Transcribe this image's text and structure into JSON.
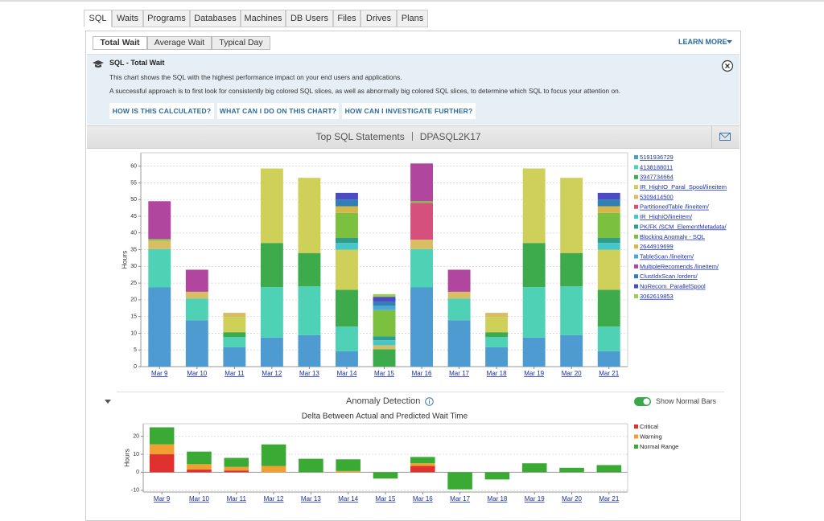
{
  "tabs": [
    "SQL",
    "Waits",
    "Programs",
    "Databases",
    "Machines",
    "DB Users",
    "Files",
    "Drives",
    "Plans"
  ],
  "subtabs": [
    "Total Wait",
    "Average Wait",
    "Typical Day"
  ],
  "learn_more": "LEARN MORE",
  "info": {
    "title": "SQL - Total Wait",
    "lines": [
      "This chart shows the SQL with the highest performance impact on your end users and applications.",
      "A successful approach is to first look for consistently big colored SQL slices, as well as abnormally big colored SQL slices, to determine which SQL to focus your attention on."
    ],
    "buttons": [
      "HOW IS THIS CALCULATED?",
      "WHAT CAN I DO ON THIS CHART?",
      "HOW CAN I INVESTIGATE FURTHER?"
    ]
  },
  "anomaly_section": {
    "title": "Anomaly Detection",
    "toggle_label": "Show Normal Bars"
  },
  "chart_data": [
    {
      "type": "bar",
      "stacked": true,
      "title": "Top SQL Statements",
      "subtitle": "DPASQL2K17",
      "y_label": "Hours",
      "categories": [
        "Mar 9",
        "Mar 10",
        "Mar 11",
        "Mar 12",
        "Mar 13",
        "Mar 14",
        "Mar 15",
        "Mar 16",
        "Mar 17",
        "Mar 18",
        "Mar 19",
        "Mar 20",
        "Mar 21"
      ],
      "ylim": [
        0,
        64
      ],
      "yticks": [
        0,
        5,
        10,
        15,
        20,
        25,
        30,
        35,
        40,
        45,
        50,
        55,
        60
      ],
      "grid": true,
      "legend": "right",
      "series": [
        {
          "name": "5191936729",
          "color": "#4e9bd1",
          "values": [
            23.7,
            13.9,
            5.8,
            8.7,
            9.4,
            4.6,
            0,
            23.7,
            13.9,
            5.8,
            8.7,
            9.4,
            4.6
          ]
        },
        {
          "name": "4138188011",
          "color": "#4fd1b5",
          "values": [
            11.5,
            6.5,
            3.1,
            15.1,
            14.6,
            7.4,
            0,
            11.5,
            6.5,
            3.1,
            15.1,
            14.6,
            7.4
          ]
        },
        {
          "name": "3947734664",
          "color": "#3daa4c",
          "values": [
            0,
            0,
            1.4,
            13.2,
            10,
            11,
            5.2,
            0,
            0,
            1.4,
            13.2,
            10,
            11
          ]
        },
        {
          "name": "IR_HighIO_Paral_Spool/lineitem",
          "color": "#cfd05a",
          "values": [
            0,
            0,
            4.6,
            22.3,
            22.5,
            12,
            0,
            0,
            0,
            4.6,
            22.3,
            22.5,
            12
          ]
        },
        {
          "name": "5309414500",
          "color": "#d8bd64",
          "values": [
            2.5,
            2,
            1.2,
            0,
            0,
            0,
            1.2,
            2.8,
            2,
            1.2,
            0,
            0,
            0
          ]
        },
        {
          "name": "PartitionedTable /lineitem/",
          "color": "#d5507c",
          "values": [
            0,
            0,
            0,
            0,
            0,
            0,
            0,
            11,
            0,
            0,
            0,
            0,
            0
          ]
        },
        {
          "name": "IR_HighIO/lineitem/",
          "color": "#45c7c9",
          "values": [
            0,
            0,
            0,
            0,
            0,
            2,
            1.5,
            0,
            0,
            0,
            0,
            0,
            2
          ]
        },
        {
          "name": "PK/FK /SCM_ElementMetadata/",
          "color": "#2f9c8c",
          "values": [
            0,
            0,
            0,
            0,
            0,
            1.5,
            1.2,
            0,
            0,
            0,
            0,
            0,
            1.5
          ]
        },
        {
          "name": "Blocking Anomaly - SQL",
          "color": "#7cc040",
          "values": [
            0.5,
            0,
            0,
            0,
            0,
            7.5,
            7.8,
            0.5,
            0,
            0,
            0,
            0,
            7.5
          ]
        },
        {
          "name": "2644919699",
          "color": "#d4b74b",
          "values": [
            0,
            0,
            0,
            0,
            0,
            2,
            0,
            0,
            0,
            0,
            0,
            0,
            2
          ]
        },
        {
          "name": "TableScan /lineitem/",
          "color": "#4aa7d6",
          "values": [
            0,
            0,
            0,
            0,
            0,
            0,
            1.3,
            0,
            0,
            0,
            0,
            0,
            0
          ]
        },
        {
          "name": "MultipleRecomends /lineitem/",
          "color": "#b1469e",
          "values": [
            11.3,
            6.6,
            0,
            0,
            0,
            0,
            0,
            11.3,
            6.6,
            0,
            0,
            0,
            0
          ]
        },
        {
          "name": "ClustIdxScan /orders/",
          "color": "#2f7fb5",
          "values": [
            0,
            0,
            0,
            0,
            0,
            2,
            1.2,
            0,
            0,
            0,
            0,
            0,
            2
          ]
        },
        {
          "name": "NoRecom_ParallelSpool",
          "color": "#4b4bc4",
          "values": [
            0,
            0,
            0,
            0,
            0,
            2,
            1.5,
            0,
            0,
            0,
            0,
            0,
            2
          ]
        },
        {
          "name": "3062619853",
          "color": "#9bcc56",
          "values": [
            0,
            0,
            0,
            0,
            0,
            0,
            0.8,
            0,
            0,
            0,
            0,
            0,
            0
          ]
        }
      ]
    },
    {
      "type": "bar",
      "stacked": true,
      "title": "Delta Between Actual and Predicted Wait Time",
      "y_label": "Hours",
      "categories": [
        "Mar 9",
        "Mar 10",
        "Mar 11",
        "Mar 12",
        "Mar 13",
        "Mar 14",
        "Mar 15",
        "Mar 16",
        "Mar 17",
        "Mar 18",
        "Mar 19",
        "Mar 20",
        "Mar 21"
      ],
      "ylim": [
        -11,
        27
      ],
      "yticks": [
        -10,
        0,
        10,
        20
      ],
      "grid": true,
      "legend": "right",
      "series": [
        {
          "name": "Critical",
          "color": "#e03030",
          "values": [
            10,
            1.5,
            1,
            0,
            0,
            0,
            0,
            3.5,
            0,
            0,
            0,
            0,
            0
          ]
        },
        {
          "name": "Warning",
          "color": "#f0a030",
          "values": [
            5.5,
            3,
            2,
            3.5,
            0,
            0.7,
            0,
            1.5,
            0,
            0,
            0,
            0,
            0
          ]
        },
        {
          "name": "Normal Range",
          "color": "#3aaa35",
          "values": [
            9.5,
            7,
            5,
            12,
            7.5,
            6.5,
            -3.5,
            3.5,
            -9.5,
            -4,
            5,
            2.5,
            4
          ]
        }
      ]
    }
  ]
}
